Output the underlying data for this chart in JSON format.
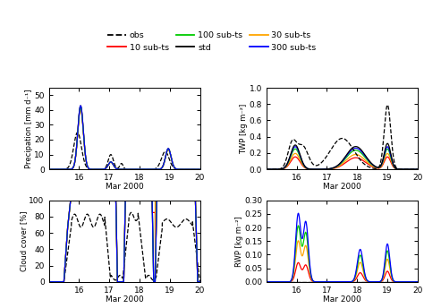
{
  "legend": {
    "obs": {
      "color": "black",
      "linestyle": "--",
      "label": "obs"
    },
    "std": {
      "color": "black",
      "linestyle": "-",
      "label": "std"
    },
    "sub10": {
      "color": "#ff0000",
      "linestyle": "-",
      "label": "10 sub-ts"
    },
    "sub30": {
      "color": "#ffa500",
      "linestyle": "-",
      "label": "30 sub-ts"
    },
    "sub100": {
      "color": "#00cc00",
      "linestyle": "-",
      "label": "100 sub-ts"
    },
    "sub300": {
      "color": "#0000ff",
      "linestyle": "-",
      "label": "300 sub-ts"
    }
  },
  "xlabel": "Mar 2000",
  "xlim": [
    15.0,
    20.0
  ],
  "xticks": [
    15,
    16,
    17,
    18,
    19,
    20
  ],
  "xticklabels": [
    "",
    "16",
    "17",
    "18",
    "19",
    "20"
  ],
  "panels": {
    "precip": {
      "ylabel": "Precipation [mm d⁻¹]",
      "ylim": [
        0,
        55
      ],
      "yticks": [
        0,
        10,
        20,
        30,
        40,
        50
      ]
    },
    "twp": {
      "ylabel": "TWP [kg m⁻²]",
      "ylim": [
        0,
        1.0
      ],
      "yticks": [
        0.0,
        0.2,
        0.4,
        0.6,
        0.8,
        1.0
      ]
    },
    "cloud": {
      "ylabel": "Cloud cover [%]",
      "ylim": [
        0,
        100
      ],
      "yticks": [
        0,
        20,
        40,
        60,
        80,
        100
      ]
    },
    "rwp": {
      "ylabel": "RWP [kg m⁻²]",
      "ylim": [
        0,
        0.3
      ],
      "yticks": [
        0.0,
        0.05,
        0.1,
        0.15,
        0.2,
        0.25,
        0.3
      ]
    }
  }
}
